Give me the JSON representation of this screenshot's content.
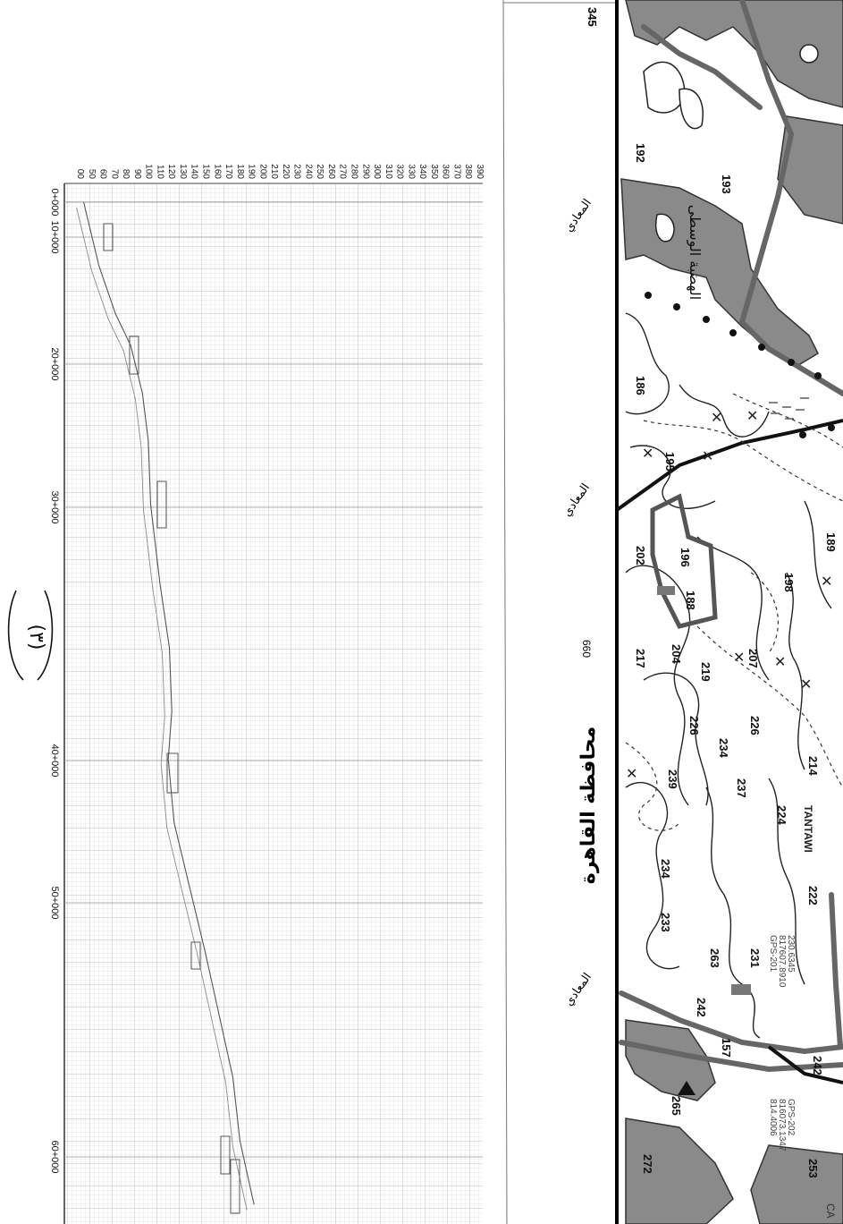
{
  "profile": {
    "elevation_ticks": [
      "00",
      "50",
      "60",
      "70",
      "80",
      "90",
      "100",
      "110",
      "120",
      "130",
      "140",
      "150",
      "160",
      "170",
      "180",
      "190",
      "200",
      "210",
      "220",
      "230",
      "240",
      "250",
      "260",
      "270",
      "280",
      "290",
      "300",
      "310",
      "320",
      "330",
      "340",
      "350",
      "360",
      "370",
      "380",
      "390"
    ],
    "chainage_labels": [
      "0+000",
      "10+000",
      "20+000",
      "30+000",
      "40+000",
      "50+000",
      "60+000"
    ],
    "sheet_number": "(٣)",
    "ground_profile": [
      {
        "km": 0,
        "elev": 55
      },
      {
        "km": 4,
        "elev": 68
      },
      {
        "km": 7,
        "elev": 82
      },
      {
        "km": 9,
        "elev": 95
      },
      {
        "km": 12,
        "elev": 105
      },
      {
        "km": 15,
        "elev": 110
      },
      {
        "km": 19,
        "elev": 112
      },
      {
        "km": 24,
        "elev": 120
      },
      {
        "km": 28,
        "elev": 128
      },
      {
        "km": 32,
        "elev": 130
      },
      {
        "km": 35,
        "elev": 127
      },
      {
        "km": 39,
        "elev": 132
      },
      {
        "km": 43,
        "elev": 145
      },
      {
        "km": 47,
        "elev": 158
      },
      {
        "km": 51,
        "elev": 170
      },
      {
        "km": 55,
        "elev": 182
      },
      {
        "km": 59,
        "elev": 188
      },
      {
        "km": 63,
        "elev": 200
      }
    ]
  },
  "map": {
    "grid_labels": [
      "345",
      "660"
    ],
    "edge_labels": [
      "المعادي",
      "المعادي",
      "المعادي"
    ],
    "governorate_label": "محافظة القاهرة",
    "area_label": "الهضبة الوسطى",
    "spot_heights": [
      "192",
      "193",
      "186",
      "195",
      "202",
      "196",
      "189",
      "188",
      "198",
      "204",
      "217",
      "219",
      "207",
      "226",
      "226",
      "234",
      "239",
      "214",
      "224",
      "237",
      "234",
      "233",
      "263",
      "231",
      "242",
      "157",
      "265",
      "272",
      "253",
      "242",
      "222"
    ],
    "road_label": "TANTAWI",
    "gps_labels": [
      "GPS-201",
      "GPS-202"
    ],
    "corner_label": "CA",
    "gps_coords": [
      "817607.8910",
      "230.6345",
      "816073.1347",
      "814.4006"
    ]
  },
  "colors": {
    "grid": "#bdbdbd",
    "profile_line": "#666666",
    "urban_fill": "#8a8a8a",
    "map_background": "#ffffff",
    "roads": "#6d6d6d"
  }
}
